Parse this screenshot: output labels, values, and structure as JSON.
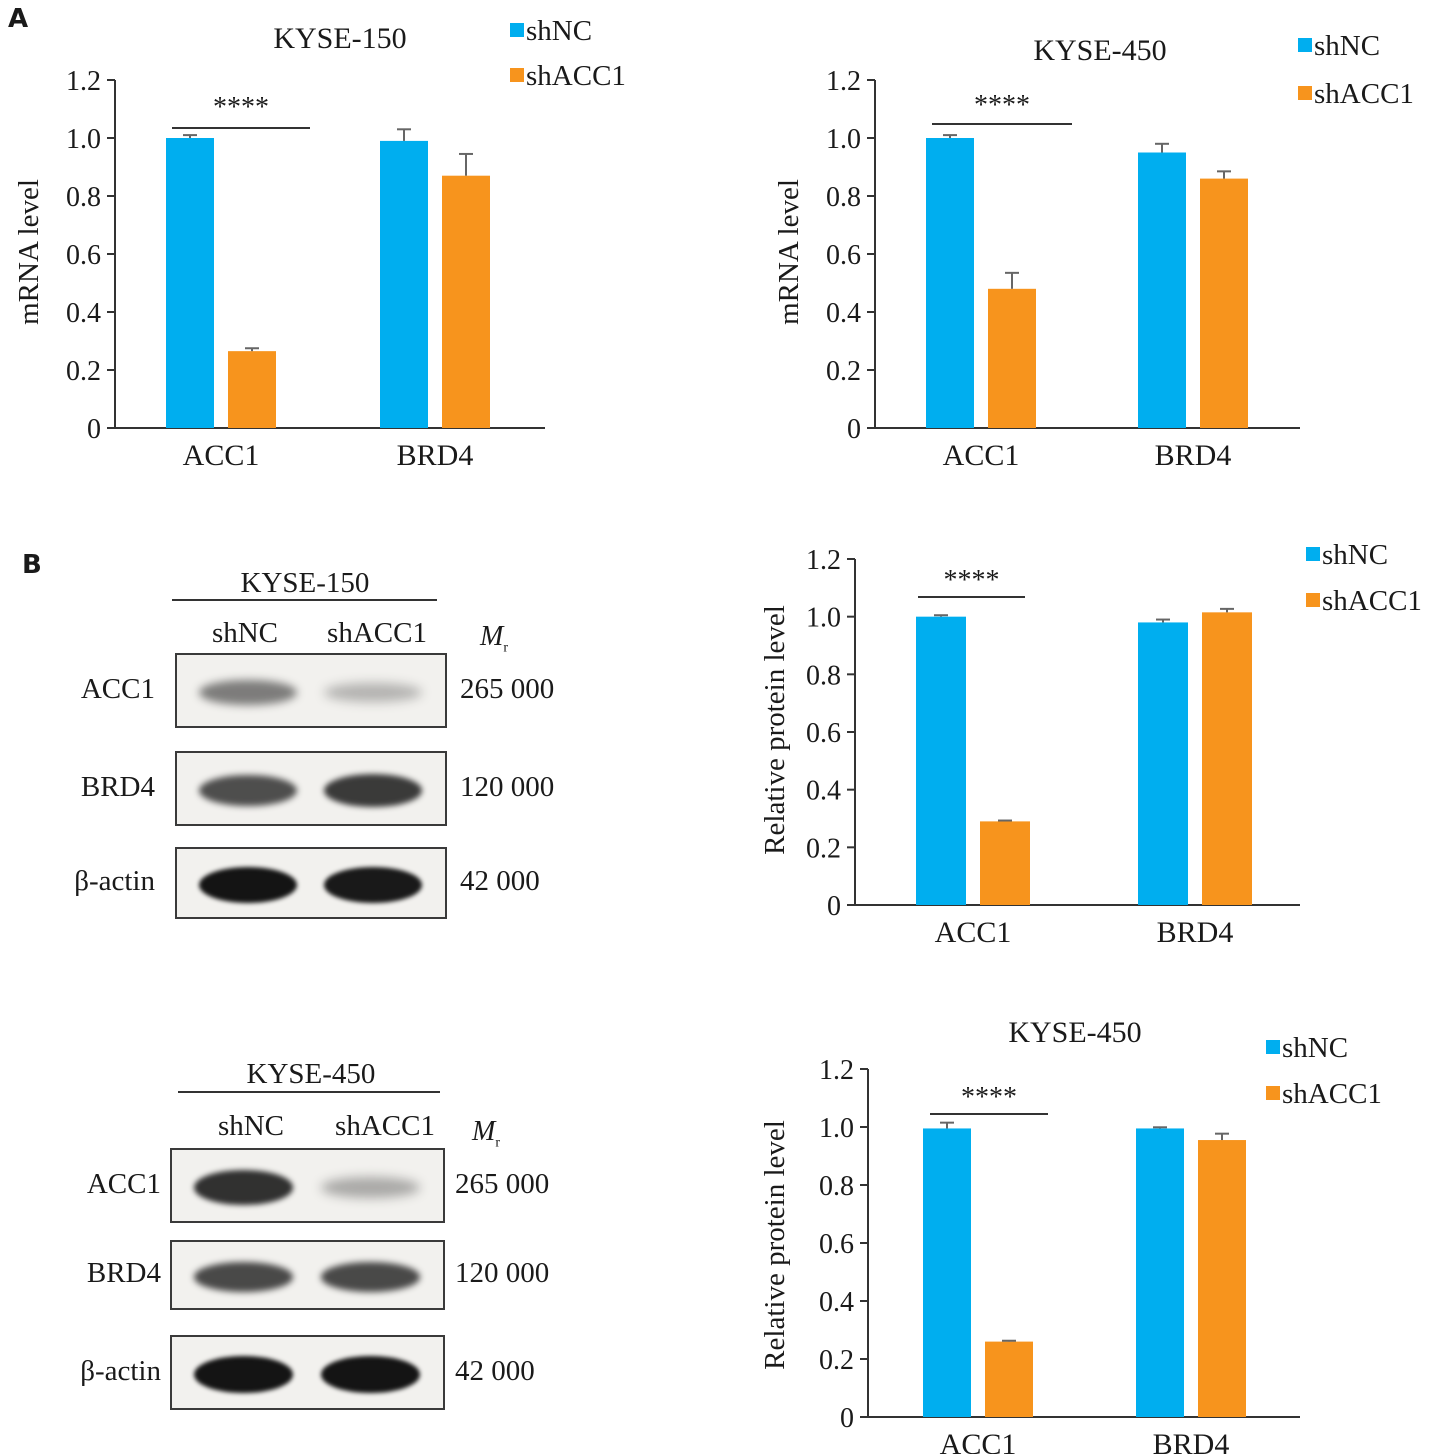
{
  "panel_labels": {
    "a": "A",
    "b": "B"
  },
  "colors": {
    "shNC": "#00aeef",
    "shACC1": "#f7941d"
  },
  "chart_data": [
    {
      "type": "bar",
      "title": "KYSE-150",
      "ylabel": "mRNA level",
      "categories": [
        "ACC1",
        "BRD4"
      ],
      "ylim": [
        0,
        1.2
      ],
      "yticks": [
        "0",
        "0.2",
        "0.4",
        "0.6",
        "0.8",
        "1.0",
        "1.2"
      ],
      "series": [
        {
          "name": "shNC",
          "values": [
            1.0,
            0.99
          ],
          "errors": [
            0.01,
            0.04
          ]
        },
        {
          "name": "shACC1",
          "values": [
            0.265,
            0.87
          ],
          "errors": [
            0.01,
            0.075
          ]
        }
      ],
      "significance": {
        "label": "****",
        "category": "ACC1"
      }
    },
    {
      "type": "bar",
      "title": "KYSE-450",
      "ylabel": "mRNA level",
      "categories": [
        "ACC1",
        "BRD4"
      ],
      "ylim": [
        0,
        1.2
      ],
      "yticks": [
        "0",
        "0.2",
        "0.4",
        "0.6",
        "0.8",
        "1.0",
        "1.2"
      ],
      "series": [
        {
          "name": "shNC",
          "values": [
            1.0,
            0.95
          ],
          "errors": [
            0.01,
            0.03
          ]
        },
        {
          "name": "shACC1",
          "values": [
            0.48,
            0.86
          ],
          "errors": [
            0.055,
            0.025
          ]
        }
      ],
      "significance": {
        "label": "****",
        "category": "ACC1"
      }
    },
    {
      "type": "bar",
      "title": "",
      "ylabel": "Relative protein level",
      "categories": [
        "ACC1",
        "BRD4"
      ],
      "ylim": [
        0,
        1.2
      ],
      "yticks": [
        "0",
        "0.2",
        "0.4",
        "0.6",
        "0.8",
        "1.0",
        "1.2"
      ],
      "series": [
        {
          "name": "shNC",
          "values": [
            1.0,
            0.98
          ],
          "errors": [
            0.005,
            0.01
          ]
        },
        {
          "name": "shACC1",
          "values": [
            0.29,
            1.015
          ],
          "errors": [
            0.003,
            0.012
          ]
        }
      ],
      "significance": {
        "label": "****",
        "category": "ACC1"
      }
    },
    {
      "type": "bar",
      "title": "KYSE-450",
      "ylabel": "Relative protein level",
      "categories": [
        "ACC1",
        "BRD4"
      ],
      "ylim": [
        0,
        1.2
      ],
      "yticks": [
        "0",
        "0.2",
        "0.4",
        "0.6",
        "0.8",
        "1.0",
        "1.2"
      ],
      "series": [
        {
          "name": "shNC",
          "values": [
            0.995,
            0.995
          ],
          "errors": [
            0.02,
            0.004
          ]
        },
        {
          "name": "shACC1",
          "values": [
            0.26,
            0.955
          ],
          "errors": [
            0.003,
            0.022
          ]
        }
      ],
      "significance": {
        "label": "****",
        "category": "ACC1"
      }
    }
  ],
  "western_blots": [
    {
      "title": "KYSE-150",
      "lanes": [
        "shNC",
        "shACC1"
      ],
      "mr_label": "M",
      "mr_sub": "r",
      "rows": [
        {
          "protein": "ACC1",
          "mw": "265 000",
          "intensity": [
            0.45,
            0.15
          ]
        },
        {
          "protein": "BRD4",
          "mw": "120 000",
          "intensity": [
            0.7,
            0.8
          ]
        },
        {
          "protein": "β-actin",
          "mw": "42 000",
          "intensity": [
            1.0,
            0.98
          ]
        }
      ]
    },
    {
      "title": "KYSE-450",
      "lanes": [
        "shNC",
        "shACC1"
      ],
      "mr_label": "M",
      "mr_sub": "r",
      "rows": [
        {
          "protein": "ACC1",
          "mw": "265 000",
          "intensity": [
            0.85,
            0.2
          ]
        },
        {
          "protein": "BRD4",
          "mw": "120 000",
          "intensity": [
            0.72,
            0.72
          ]
        },
        {
          "protein": "β-actin",
          "mw": "42 000",
          "intensity": [
            1.0,
            1.0
          ]
        }
      ]
    }
  ]
}
